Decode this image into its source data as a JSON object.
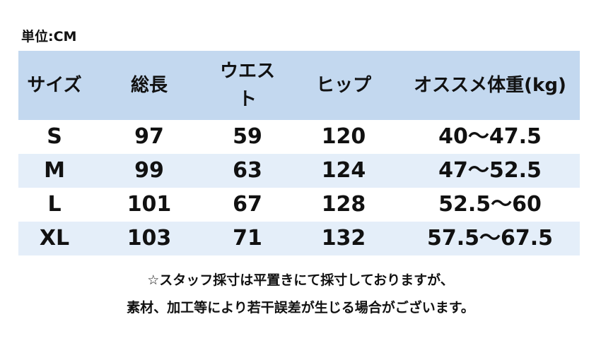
{
  "unit": "単位:CM",
  "table": {
    "headers": [
      "サイズ",
      "総長",
      "ウエスト",
      "ヒップ",
      "オススメ体重(kg)"
    ],
    "rows": [
      [
        "S",
        "97",
        "59",
        "120",
        "40～47.5"
      ],
      [
        "M",
        "99",
        "63",
        "124",
        "47～52.5"
      ],
      [
        "L",
        "101",
        "67",
        "128",
        "52.5～60"
      ],
      [
        "XL",
        "103",
        "71",
        "132",
        "57.5～67.5"
      ]
    ]
  },
  "notes": [
    "☆スタッフ採寸は平置きにて採寸しておりますが、",
    "素材、加工等により若干誤差が生じる場合がございます。"
  ],
  "colors": {
    "header_background": "#c3d8ef",
    "stripe_background": "#e4eef9",
    "text": "#111111"
  }
}
